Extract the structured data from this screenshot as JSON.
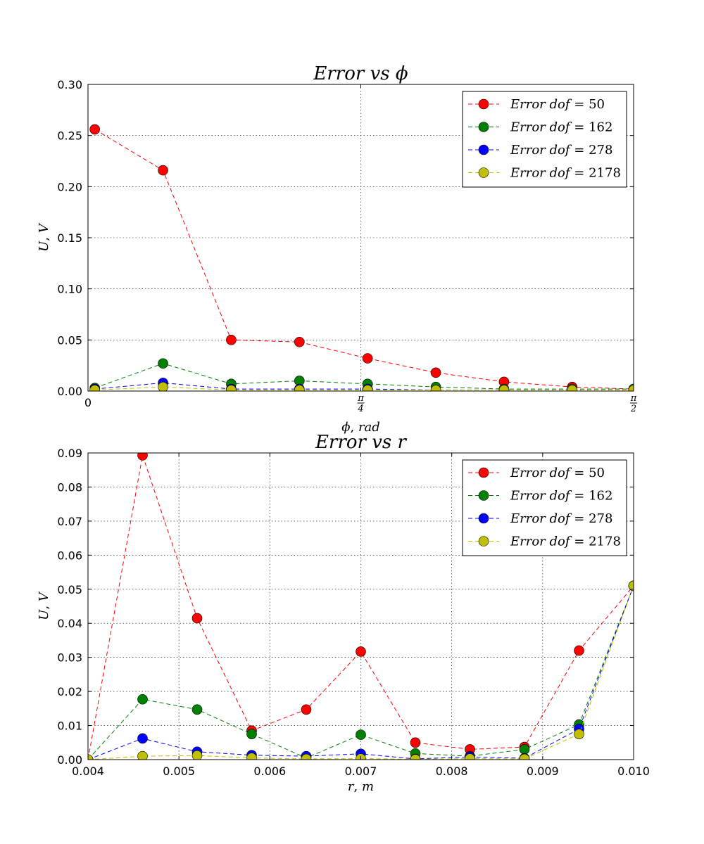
{
  "chart_data": [
    {
      "type": "line",
      "title": "Error vs ϕ",
      "xlabel": "ϕ, rad",
      "ylabel": "U, V",
      "xlim": [
        0,
        1.5708
      ],
      "ylim": [
        0,
        0.3
      ],
      "grid": true,
      "legend_position": "top-right",
      "x_ticks": [
        {
          "value": 0,
          "label": "0"
        },
        {
          "value": 0.7854,
          "label": "π/4",
          "num": "π",
          "den": "4"
        },
        {
          "value": 1.5708,
          "label": "π/2",
          "num": "π",
          "den": "2"
        }
      ],
      "y_ticks": [
        "0.00",
        "0.05",
        "0.10",
        "0.15",
        "0.20",
        "0.25",
        "0.30"
      ],
      "x": [
        0.0196,
        0.216,
        0.4123,
        0.6087,
        0.805,
        1.0014,
        1.1977,
        1.3941,
        1.5708
      ],
      "series": [
        {
          "name": "Error dof = 50",
          "color": "#ff0000",
          "values": [
            0.256,
            0.216,
            0.05,
            0.048,
            0.032,
            0.018,
            0.009,
            0.004,
            0.002
          ]
        },
        {
          "name": "Error dof = 162",
          "color": "#008000",
          "values": [
            0.003,
            0.027,
            0.007,
            0.01,
            0.007,
            0.004,
            0.002,
            0.002,
            0.002
          ]
        },
        {
          "name": "Error dof = 278",
          "color": "#0000ff",
          "values": [
            0.002,
            0.008,
            0.002,
            0.002,
            0.002,
            0.001,
            0.001,
            0.001,
            0.001
          ]
        },
        {
          "name": "Error dof = 2178",
          "color": "#bfbf00",
          "values": [
            0.001,
            0.004,
            0.001,
            0.001,
            0.001,
            0.001,
            0.001,
            0.001,
            0.001
          ]
        }
      ]
    },
    {
      "type": "line",
      "title": "Error vs r",
      "xlabel": "r, m",
      "ylabel": "U, V",
      "xlim": [
        0.004,
        0.01
      ],
      "ylim": [
        0,
        0.09
      ],
      "grid": true,
      "legend_position": "top-right",
      "x_ticks": [
        {
          "value": 0.004,
          "label": "0.004"
        },
        {
          "value": 0.005,
          "label": "0.005"
        },
        {
          "value": 0.006,
          "label": "0.006"
        },
        {
          "value": 0.007,
          "label": "0.007"
        },
        {
          "value": 0.008,
          "label": "0.008"
        },
        {
          "value": 0.009,
          "label": "0.009"
        },
        {
          "value": 0.01,
          "label": "0.010"
        }
      ],
      "y_ticks": [
        "0.00",
        "0.01",
        "0.02",
        "0.03",
        "0.04",
        "0.05",
        "0.06",
        "0.07",
        "0.08",
        "0.09"
      ],
      "x": [
        0.004,
        0.0046,
        0.0052,
        0.0058,
        0.0064,
        0.007,
        0.0076,
        0.0082,
        0.0088,
        0.0094,
        0.01
      ],
      "series": [
        {
          "name": "Error dof = 50",
          "color": "#ff0000",
          "values": [
            0.0,
            0.0893,
            0.0415,
            0.0085,
            0.0147,
            0.0317,
            0.005,
            0.003,
            0.0037,
            0.032,
            0.051
          ]
        },
        {
          "name": "Error dof = 162",
          "color": "#008000",
          "values": [
            0.0,
            0.0177,
            0.0147,
            0.0075,
            0.0005,
            0.0073,
            0.0018,
            0.001,
            0.003,
            0.0103,
            0.051
          ]
        },
        {
          "name": "Error dof = 278",
          "color": "#0000ff",
          "values": [
            0.0,
            0.0062,
            0.0023,
            0.0013,
            0.001,
            0.0017,
            0.0002,
            0.0008,
            0.0004,
            0.009,
            0.051
          ]
        },
        {
          "name": "Error dof = 2178",
          "color": "#bfbf00",
          "values": [
            0.0,
            0.001,
            0.0012,
            0.0005,
            0.0002,
            0.0003,
            0.0001,
            0.0003,
            0.0002,
            0.0075,
            0.051
          ]
        }
      ]
    }
  ]
}
